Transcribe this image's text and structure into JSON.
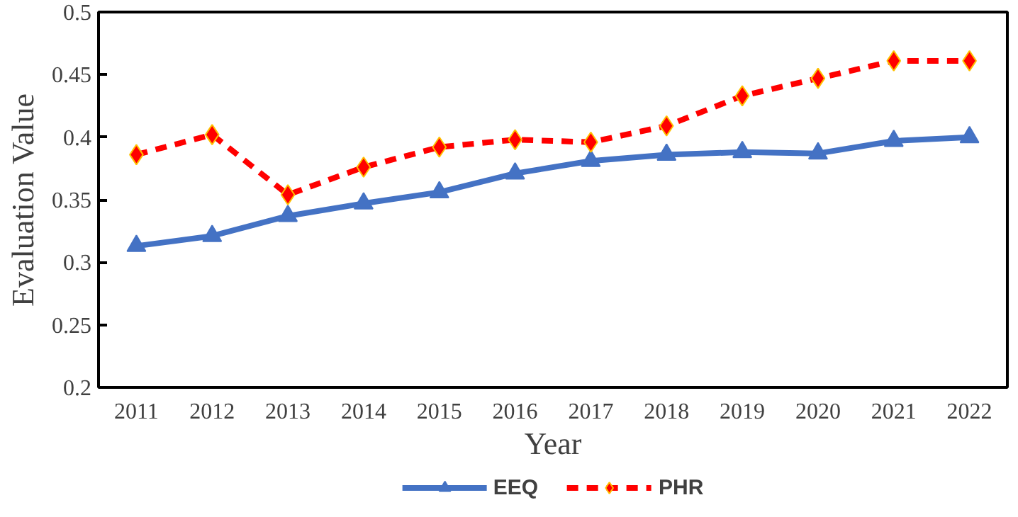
{
  "chart_data": {
    "type": "line",
    "xlabel": "Year",
    "ylabel": "Evaluation Value",
    "categories": [
      "2011",
      "2012",
      "2013",
      "2014",
      "2015",
      "2016",
      "2017",
      "2018",
      "2019",
      "2020",
      "2021",
      "2022"
    ],
    "series": [
      {
        "name": "EEQ",
        "color": "#4472c4",
        "marker": "triangle",
        "line_style": "solid",
        "values": [
          0.313,
          0.321,
          0.337,
          0.347,
          0.356,
          0.371,
          0.381,
          0.386,
          0.388,
          0.387,
          0.397,
          0.4
        ]
      },
      {
        "name": "PHR",
        "color": "#ff0000",
        "marker": "diamond",
        "line_style": "dashed",
        "values": [
          0.386,
          0.402,
          0.354,
          0.376,
          0.392,
          0.398,
          0.396,
          0.409,
          0.433,
          0.447,
          0.461,
          0.461
        ]
      }
    ],
    "ylim": [
      0.2,
      0.5
    ],
    "yticks": [
      0.2,
      0.25,
      0.3,
      0.35,
      0.4,
      0.45,
      0.5
    ],
    "grid": false,
    "legend": "bottom"
  }
}
